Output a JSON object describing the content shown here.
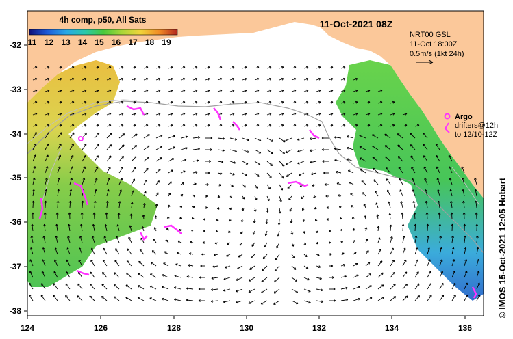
{
  "colorbar": {
    "title": "4h comp, p50, All Sats",
    "ticks": [
      "11",
      "12",
      "13",
      "14",
      "15",
      "16",
      "17",
      "18",
      "19"
    ]
  },
  "header": {
    "date": "11-Oct-2021 08Z"
  },
  "info": {
    "line1": "NRT00 GSL",
    "line2": "11-Oct 18:00Z",
    "line3": "0.5m/s (1kt 24h)"
  },
  "legend": {
    "argo": "Argo",
    "drifters_line1": "drifters@12h",
    "drifters_line2": "to 12/10-12Z"
  },
  "credit": "© IMOS 15-Oct-2021 12:05 Hobart",
  "axes": {
    "x_ticks": [
      "124",
      "126",
      "128",
      "130",
      "132",
      "134",
      "136"
    ],
    "y_ticks": [
      "-32",
      "-33",
      "-34",
      "-35",
      "-36",
      "-37",
      "-38"
    ]
  },
  "colors": {
    "land": "#fbc89a",
    "ocean": "#ffffff",
    "argo": "#ff33ff",
    "bathymetry": "#a0a0a0"
  }
}
